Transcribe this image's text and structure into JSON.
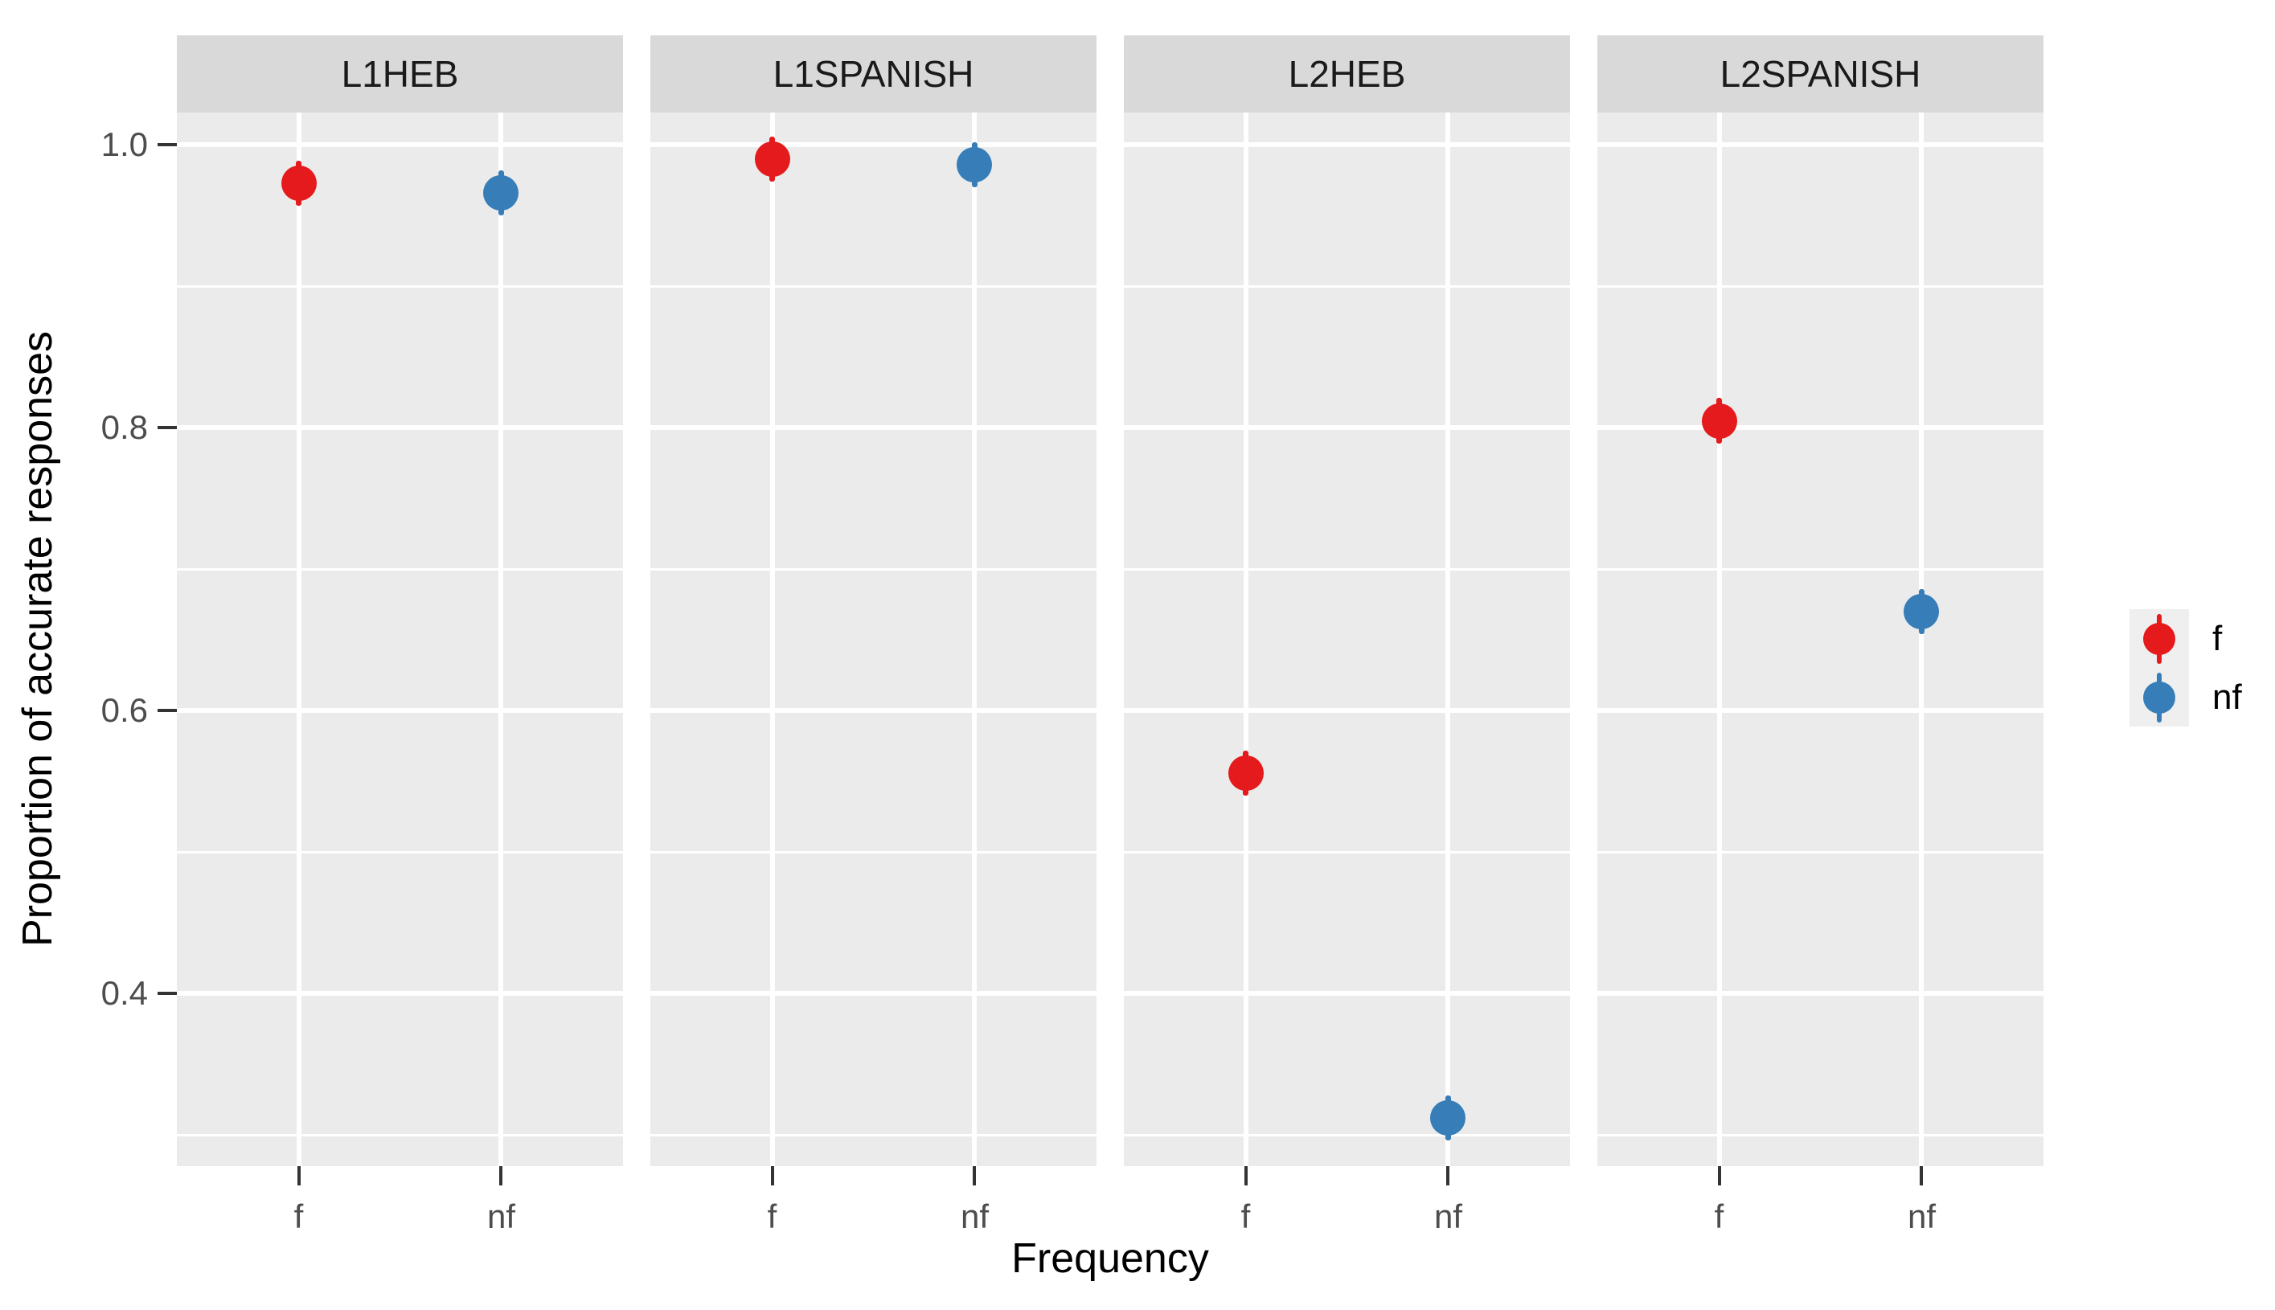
{
  "chart_data": {
    "type": "scatter",
    "subtype": "pointrange-faceted",
    "title": "",
    "xlabel": "Frequency",
    "ylabel": "Proportion of accurate responses",
    "facets": [
      "L1HEB",
      "L1SPANISH",
      "L2HEB",
      "L2SPANISH"
    ],
    "x_categories": [
      "f",
      "nf"
    ],
    "series": [
      {
        "name": "f",
        "color": "#E41A1C",
        "values_by_facet": {
          "L1HEB": 0.973,
          "L1SPANISH": 0.99,
          "L2HEB": 0.556,
          "L2SPANISH": 0.805
        }
      },
      {
        "name": "nf",
        "color": "#377EB8",
        "values_by_facet": {
          "L1HEB": 0.966,
          "L1SPANISH": 0.986,
          "L2HEB": 0.312,
          "L2SPANISH": 0.67
        }
      }
    ],
    "error_bar_halfwidth": 0.016,
    "yticks": [
      1.0,
      0.8,
      0.6,
      0.4
    ],
    "ytick_labels": [
      "1.0",
      "0.8",
      "0.6",
      "0.4"
    ],
    "minor_gridlines": [
      0.9,
      0.7,
      0.5,
      0.3
    ],
    "ylim": [
      0.278,
      1.023
    ],
    "grid": "white major and minor gridlines on gray panel",
    "legend_position": "right-middle",
    "legend_labels": [
      "f",
      "nf"
    ]
  },
  "colors": {
    "panel_background": "#EBEBEB",
    "strip_background": "#D9D9D9",
    "strip_text": "#1A1A1A",
    "gridline": "#FFFFFF",
    "axis_text": "#4D4D4D",
    "axis_title": "#000000",
    "tick_mark": "#333333",
    "legend_key_background": "#EFEFEF",
    "point_red": "#E41A1C",
    "point_blue": "#377EB8"
  }
}
